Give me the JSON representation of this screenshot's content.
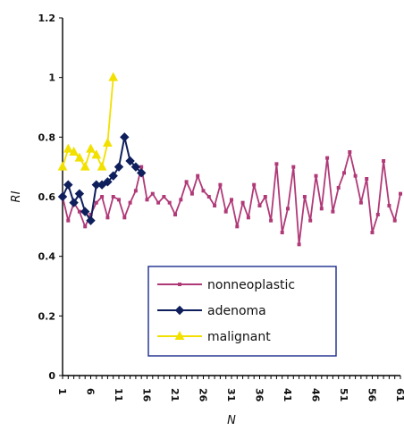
{
  "chart_data": {
    "type": "line",
    "title": "",
    "xlabel": "N",
    "ylabel": "RI",
    "ylim": [
      0,
      1.2
    ],
    "xlim": [
      1,
      61
    ],
    "y_ticks": [
      0,
      0.2,
      0.4,
      0.6,
      0.8,
      1,
      1.2
    ],
    "y_tick_labels": [
      "0",
      "0.2",
      "0.4",
      "0.6",
      "0.8",
      "1",
      "1.2"
    ],
    "x_ticks": [
      1,
      6,
      11,
      16,
      21,
      26,
      31,
      36,
      41,
      46,
      51,
      56,
      61
    ],
    "x_tick_labels": [
      "1",
      "6",
      "11",
      "16",
      "21",
      "26",
      "31",
      "36",
      "41",
      "46",
      "51",
      "56",
      "61"
    ],
    "grid": false,
    "legend_position": "lower-center",
    "series": [
      {
        "name": "nonneoplastic",
        "color": "#b03a78",
        "marker": "square-small",
        "x": [
          1,
          2,
          3,
          4,
          5,
          6,
          7,
          8,
          9,
          10,
          11,
          12,
          13,
          14,
          15,
          16,
          17,
          18,
          19,
          20,
          21,
          22,
          23,
          24,
          25,
          26,
          27,
          28,
          29,
          30,
          31,
          32,
          33,
          34,
          35,
          36,
          37,
          38,
          39,
          40,
          41,
          42,
          43,
          44,
          45,
          46,
          47,
          48,
          49,
          50,
          51,
          52,
          53,
          54,
          55,
          56,
          57,
          58,
          59,
          60,
          61
        ],
        "y": [
          0.6,
          0.52,
          0.58,
          0.55,
          0.5,
          0.54,
          0.58,
          0.6,
          0.53,
          0.6,
          0.59,
          0.53,
          0.58,
          0.62,
          0.7,
          0.59,
          0.61,
          0.58,
          0.6,
          0.58,
          0.54,
          0.59,
          0.65,
          0.61,
          0.67,
          0.62,
          0.6,
          0.57,
          0.64,
          0.55,
          0.59,
          0.5,
          0.58,
          0.53,
          0.64,
          0.57,
          0.6,
          0.52,
          0.71,
          0.48,
          0.56,
          0.7,
          0.44,
          0.6,
          0.52,
          0.67,
          0.56,
          0.73,
          0.55,
          0.63,
          0.68,
          0.75,
          0.67,
          0.58,
          0.66,
          0.48,
          0.54,
          0.72,
          0.57,
          0.52,
          0.61
        ]
      },
      {
        "name": "adenoma",
        "color": "#0f1f5c",
        "marker": "diamond",
        "x": [
          1,
          2,
          3,
          4,
          5,
          6,
          7,
          8,
          9,
          10,
          11,
          12,
          13,
          14,
          15
        ],
        "y": [
          0.6,
          0.64,
          0.58,
          0.61,
          0.55,
          0.52,
          0.64,
          0.64,
          0.65,
          0.67,
          0.7,
          0.8,
          0.72,
          0.7,
          0.68
        ]
      },
      {
        "name": "malignant",
        "color": "#f2e000",
        "marker": "triangle",
        "x": [
          1,
          2,
          3,
          4,
          5,
          6,
          7,
          8,
          9,
          10
        ],
        "y": [
          0.7,
          0.76,
          0.75,
          0.73,
          0.7,
          0.76,
          0.74,
          0.7,
          0.78,
          1.0
        ]
      }
    ]
  }
}
